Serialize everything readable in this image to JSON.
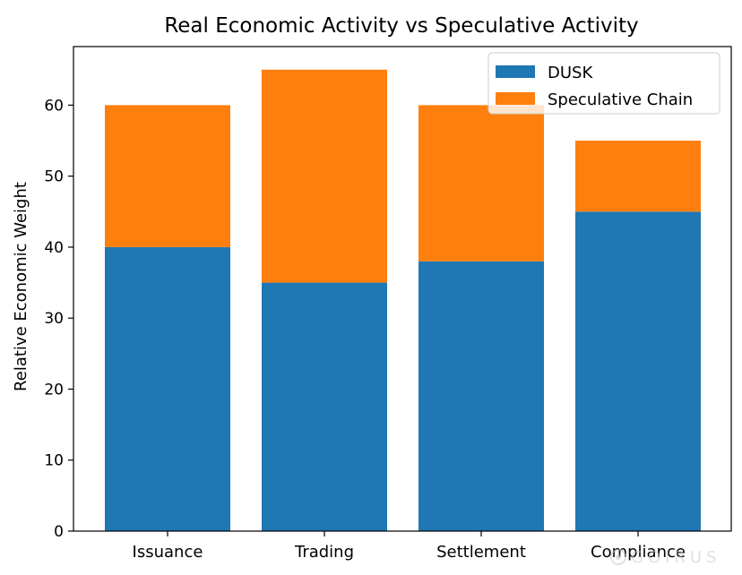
{
  "chart_data": {
    "type": "bar",
    "stacked": true,
    "title": "Real Economic Activity vs Speculative Activity",
    "xlabel": "",
    "ylabel": "Relative Economic Weight",
    "categories": [
      "Issuance",
      "Trading",
      "Settlement",
      "Compliance"
    ],
    "series": [
      {
        "name": "DUSK",
        "values": [
          40,
          35,
          38,
          45
        ],
        "color": "#1f77b4"
      },
      {
        "name": "Speculative Chain",
        "values": [
          20,
          30,
          22,
          10
        ],
        "color": "#ff7f0e"
      }
    ],
    "ylim": [
      0,
      68.25
    ],
    "yticks": [
      0,
      10,
      20,
      30,
      40,
      50,
      60
    ],
    "grid": false,
    "legend_position": "top-right"
  },
  "watermark": {
    "text": "GOIRUS",
    "icon": "watermark-logo-icon"
  }
}
